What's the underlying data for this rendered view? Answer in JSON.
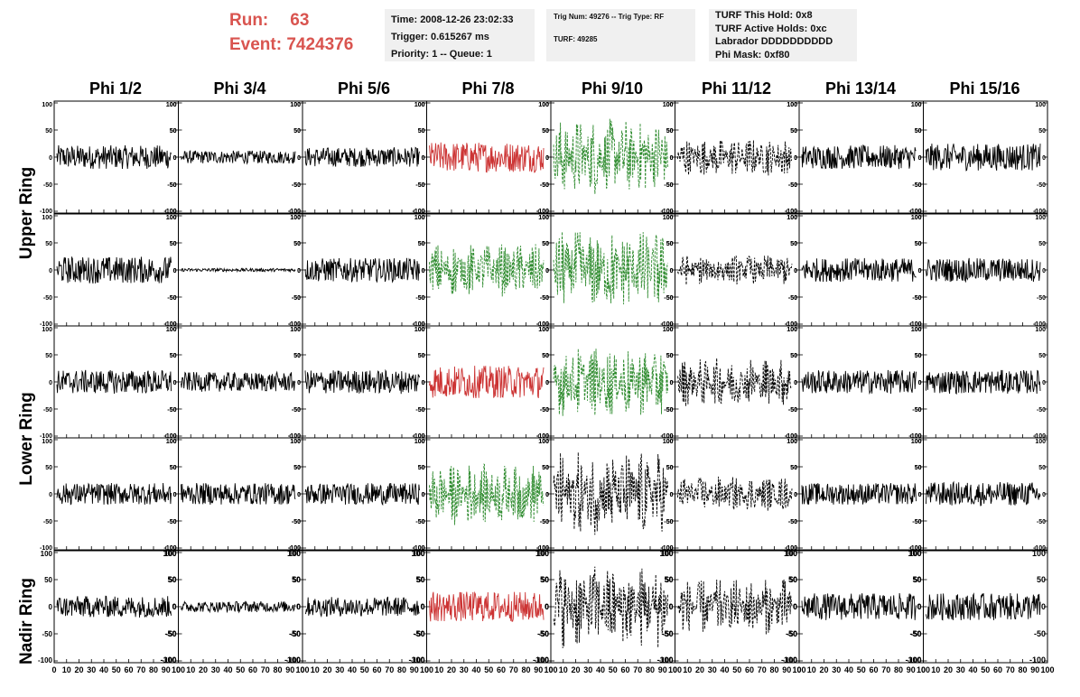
{
  "run_label": "Run:",
  "run_value": "63",
  "event_label": "Event:",
  "event_value": "7424376",
  "info1": {
    "time": "Time: 2008-12-26 23:02:33",
    "trigger": "Trigger: 0.615267 ms",
    "priority": "Priority: 1 -- Queue: 1"
  },
  "info2": {
    "trig": "Trig Num: 49276 -- Trig Type: RF",
    "turf": "TURF: 49285"
  },
  "info3": {
    "hold": "TURF This Hold: 0x8",
    "active": "TURF Active Holds: 0xc",
    "labrador": "Labrador DDDDDDDDDD",
    "mask": "Phi Mask: 0xf80"
  },
  "phi_headers": [
    "Phi 1/2",
    "Phi 3/4",
    "Phi 5/6",
    "Phi 7/8",
    "Phi 9/10",
    "Phi 11/12",
    "Phi 13/14",
    "Phi 15/16"
  ],
  "ring_labels": {
    "upper": "Upper Ring",
    "lower": "Lower Ring",
    "nadir": "Nadir Ring"
  },
  "colors": {
    "run_text": "#d9544f",
    "trace": "#000000",
    "triggered": "#cc3333",
    "green": "#2e8b2e"
  },
  "chart_data": {
    "type": "line",
    "grid_rows": 5,
    "grid_cols": 8,
    "xlim": [
      0,
      100
    ],
    "ylim": [
      -100,
      100
    ],
    "x_ticks": [
      0,
      10,
      20,
      30,
      40,
      50,
      60,
      70,
      80,
      90,
      100
    ],
    "y_ticks": [
      -100,
      -50,
      0,
      50,
      100
    ],
    "x_tick_labels": [
      "0",
      "10",
      "20",
      "30",
      "40",
      "50",
      "60",
      "70",
      "80",
      "90",
      "100"
    ],
    "y_tick_labels": [
      "-100",
      "-50",
      "0",
      "50",
      "100"
    ],
    "x_axis_label_text": "0 10 20 30 40 50 60 70 80 90 10",
    "trace_style": [
      [
        "solid",
        "solid",
        "solid",
        "red",
        "green-dashed",
        "dashed",
        "solid",
        "solid"
      ],
      [
        "solid",
        "solid",
        "solid",
        "green-dashed",
        "green-dashed",
        "dashed",
        "solid",
        "solid"
      ],
      [
        "solid",
        "solid",
        "solid",
        "red",
        "green-dashed",
        "dashed",
        "solid",
        "solid"
      ],
      [
        "solid",
        "solid",
        "solid",
        "green-dashed",
        "dashed",
        "dashed",
        "solid",
        "solid"
      ],
      [
        "solid",
        "solid",
        "solid",
        "red",
        "dashed",
        "dashed",
        "solid",
        "solid"
      ]
    ],
    "amplitude": [
      [
        22,
        12,
        18,
        28,
        55,
        28,
        22,
        25
      ],
      [
        25,
        3,
        22,
        38,
        58,
        22,
        22,
        22
      ],
      [
        22,
        18,
        22,
        30,
        50,
        35,
        22,
        22
      ],
      [
        20,
        20,
        20,
        45,
        60,
        25,
        20,
        22
      ],
      [
        20,
        10,
        18,
        28,
        60,
        40,
        25,
        25
      ]
    ]
  }
}
